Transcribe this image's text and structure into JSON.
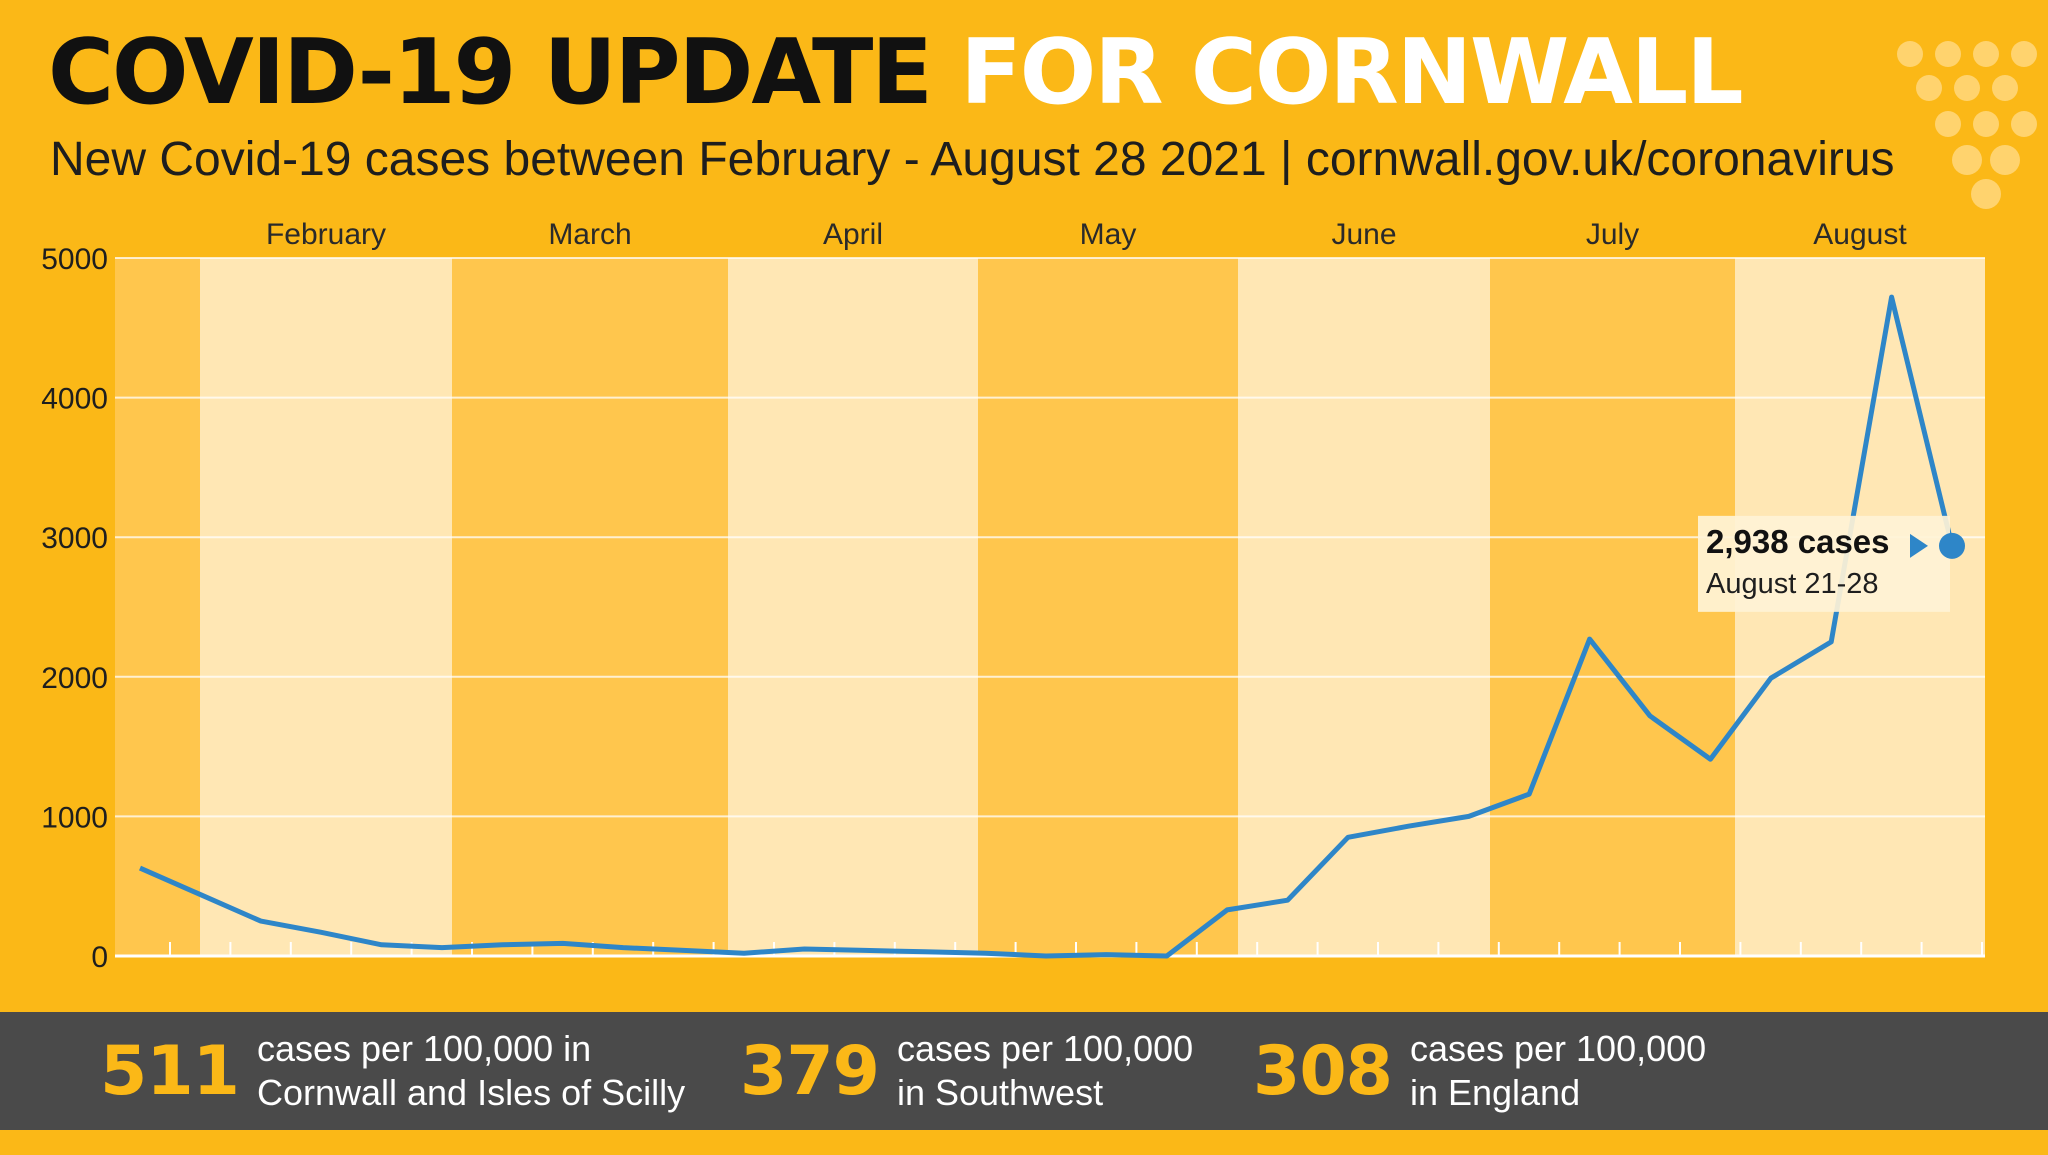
{
  "header": {
    "title_part1": "COVID-19 UPDATE",
    "title_part2": "FOR CORNWALL",
    "subtitle": "New Covid-19 cases between February - August 28 2021 | cornwall.gov.uk/coronavirus"
  },
  "colors": {
    "background": "#FBB817",
    "band_light": "#FFE7B4",
    "band_dark": "#FFC64D",
    "line": "#2E86C8",
    "footer": "#4A4A4A",
    "stat_number": "#FBB817"
  },
  "chart_data": {
    "type": "line",
    "title": "",
    "xlabel": "",
    "ylabel": "",
    "ylim": [
      0,
      5000
    ],
    "yticks": [
      0,
      1000,
      2000,
      3000,
      4000,
      5000
    ],
    "months": [
      "February",
      "March",
      "April",
      "May",
      "June",
      "July",
      "August"
    ],
    "grid": true,
    "series": [
      {
        "name": "New cases",
        "values": [
          630,
          440,
          250,
          170,
          80,
          60,
          80,
          90,
          60,
          40,
          20,
          50,
          40,
          30,
          20,
          0,
          10,
          0,
          330,
          400,
          850,
          930,
          1000,
          1160,
          2270,
          1720,
          1410,
          1990,
          2250,
          4720,
          2938
        ]
      }
    ],
    "annotation": {
      "value_label": "2,938 cases",
      "period_label": "August 21-28"
    }
  },
  "stats": [
    {
      "number": "511",
      "line1": "cases per 100,000 in",
      "line2": "Cornwall and Isles of Scilly"
    },
    {
      "number": "379",
      "line1": "cases per 100,000",
      "line2": "in Southwest"
    },
    {
      "number": "308",
      "line1": "cases per 100,000",
      "line2": "in England"
    }
  ]
}
